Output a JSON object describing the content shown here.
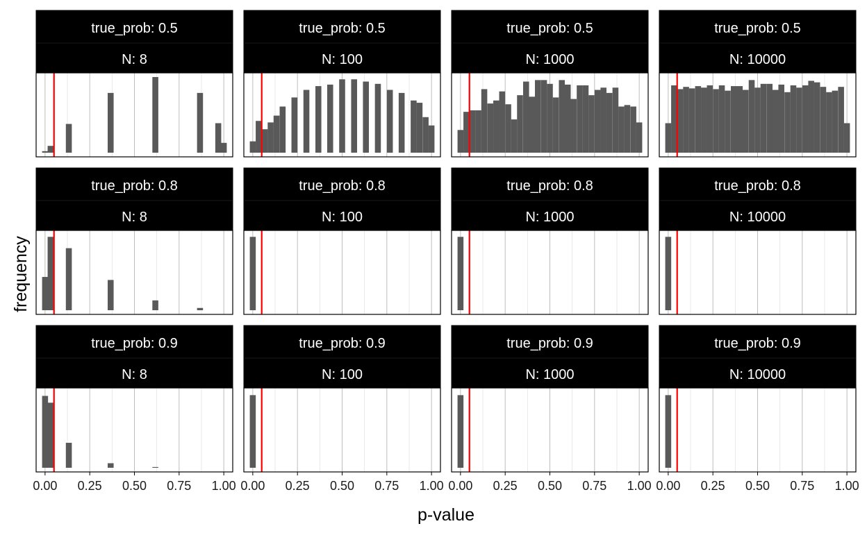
{
  "chart_data": {
    "type": "histogram-facet-grid",
    "xlabel": "p-value",
    "ylabel": "frequency",
    "x_ticks": [
      "0.00",
      "0.25",
      "0.50",
      "0.75",
      "1.00"
    ],
    "xlim": [
      -0.05,
      1.05
    ],
    "reference_line": {
      "x": 0.05,
      "color": "#ff0000"
    },
    "bar_color": "#595959",
    "strip_color": "#000000",
    "strip_text_color": "#ffffff",
    "bin_width": 0.0333,
    "facet_labels": {
      "true_prob": [
        "true_prob: 0.5",
        "true_prob: 0.8",
        "true_prob: 0.9"
      ],
      "N": [
        "N: 8",
        "N: 100",
        "N: 1000",
        "N: 10000"
      ]
    },
    "panels": [
      [
        {
          "bins": [
            {
              "x": 0.0,
              "y": 0.02
            },
            {
              "x": 0.031,
              "y": 0.09
            },
            {
              "x": 0.133,
              "y": 0.38
            },
            {
              "x": 0.367,
              "y": 0.79
            },
            {
              "x": 0.617,
              "y": 1.0
            },
            {
              "x": 0.867,
              "y": 0.79
            },
            {
              "x": 0.969,
              "y": 0.39
            },
            {
              "x": 1.0,
              "y": 0.13
            }
          ]
        },
        {
          "bins": [
            {
              "x": 0.0,
              "y": 0.15
            },
            {
              "x": 0.033,
              "y": 0.42
            },
            {
              "x": 0.067,
              "y": 0.31
            },
            {
              "x": 0.1,
              "y": 0.4
            },
            {
              "x": 0.133,
              "y": 0.49
            },
            {
              "x": 0.167,
              "y": 0.61
            },
            {
              "x": 0.233,
              "y": 0.73
            },
            {
              "x": 0.3,
              "y": 0.83
            },
            {
              "x": 0.367,
              "y": 0.88
            },
            {
              "x": 0.433,
              "y": 0.9
            },
            {
              "x": 0.5,
              "y": 0.97
            },
            {
              "x": 0.567,
              "y": 0.97
            },
            {
              "x": 0.633,
              "y": 0.94
            },
            {
              "x": 0.7,
              "y": 0.91
            },
            {
              "x": 0.767,
              "y": 0.83
            },
            {
              "x": 0.833,
              "y": 0.79
            },
            {
              "x": 0.9,
              "y": 0.69
            },
            {
              "x": 0.933,
              "y": 0.66
            },
            {
              "x": 0.967,
              "y": 0.47
            },
            {
              "x": 1.0,
              "y": 0.36
            }
          ]
        },
        {
          "bins": [
            {
              "x": 0.0,
              "y": 0.3
            },
            {
              "x": 0.033,
              "y": 0.54
            },
            {
              "x": 0.067,
              "y": 0.56
            },
            {
              "x": 0.1,
              "y": 0.56
            },
            {
              "x": 0.133,
              "y": 0.84
            },
            {
              "x": 0.167,
              "y": 0.65
            },
            {
              "x": 0.2,
              "y": 0.69
            },
            {
              "x": 0.233,
              "y": 0.81
            },
            {
              "x": 0.267,
              "y": 0.64
            },
            {
              "x": 0.3,
              "y": 0.44
            },
            {
              "x": 0.333,
              "y": 0.76
            },
            {
              "x": 0.367,
              "y": 0.94
            },
            {
              "x": 0.4,
              "y": 0.74
            },
            {
              "x": 0.433,
              "y": 0.96
            },
            {
              "x": 0.467,
              "y": 0.96
            },
            {
              "x": 0.5,
              "y": 0.91
            },
            {
              "x": 0.533,
              "y": 0.73
            },
            {
              "x": 0.567,
              "y": 0.96
            },
            {
              "x": 0.6,
              "y": 0.9
            },
            {
              "x": 0.633,
              "y": 0.71
            },
            {
              "x": 0.667,
              "y": 0.89
            },
            {
              "x": 0.7,
              "y": 0.89
            },
            {
              "x": 0.733,
              "y": 0.76
            },
            {
              "x": 0.767,
              "y": 0.83
            },
            {
              "x": 0.8,
              "y": 0.86
            },
            {
              "x": 0.833,
              "y": 0.79
            },
            {
              "x": 0.867,
              "y": 0.86
            },
            {
              "x": 0.9,
              "y": 0.61
            },
            {
              "x": 0.933,
              "y": 0.63
            },
            {
              "x": 0.967,
              "y": 0.61
            },
            {
              "x": 1.0,
              "y": 0.4
            }
          ]
        },
        {
          "bins": [
            {
              "x": 0.0,
              "y": 0.39
            },
            {
              "x": 0.033,
              "y": 0.89
            },
            {
              "x": 0.067,
              "y": 0.84
            },
            {
              "x": 0.1,
              "y": 0.87
            },
            {
              "x": 0.133,
              "y": 0.85
            },
            {
              "x": 0.167,
              "y": 0.88
            },
            {
              "x": 0.2,
              "y": 0.86
            },
            {
              "x": 0.233,
              "y": 0.89
            },
            {
              "x": 0.267,
              "y": 0.84
            },
            {
              "x": 0.3,
              "y": 0.89
            },
            {
              "x": 0.333,
              "y": 0.82
            },
            {
              "x": 0.367,
              "y": 0.88
            },
            {
              "x": 0.4,
              "y": 0.88
            },
            {
              "x": 0.433,
              "y": 0.83
            },
            {
              "x": 0.467,
              "y": 0.96
            },
            {
              "x": 0.5,
              "y": 0.86
            },
            {
              "x": 0.533,
              "y": 0.91
            },
            {
              "x": 0.567,
              "y": 0.91
            },
            {
              "x": 0.6,
              "y": 0.83
            },
            {
              "x": 0.633,
              "y": 0.9
            },
            {
              "x": 0.667,
              "y": 0.8
            },
            {
              "x": 0.7,
              "y": 0.89
            },
            {
              "x": 0.733,
              "y": 0.86
            },
            {
              "x": 0.767,
              "y": 0.89
            },
            {
              "x": 0.8,
              "y": 0.95
            },
            {
              "x": 0.833,
              "y": 0.93
            },
            {
              "x": 0.867,
              "y": 0.87
            },
            {
              "x": 0.9,
              "y": 0.8
            },
            {
              "x": 0.933,
              "y": 0.82
            },
            {
              "x": 0.967,
              "y": 0.87
            },
            {
              "x": 1.0,
              "y": 0.39
            }
          ]
        }
      ],
      [
        {
          "bins": [
            {
              "x": 0.0,
              "y": 0.44
            },
            {
              "x": 0.031,
              "y": 0.97
            },
            {
              "x": 0.133,
              "y": 0.82
            },
            {
              "x": 0.367,
              "y": 0.4
            },
            {
              "x": 0.617,
              "y": 0.13
            },
            {
              "x": 0.867,
              "y": 0.03
            }
          ]
        },
        {
          "bins": [
            {
              "x": 0.0,
              "y": 0.97
            }
          ]
        },
        {
          "bins": [
            {
              "x": 0.0,
              "y": 0.97
            }
          ]
        },
        {
          "bins": [
            {
              "x": 0.0,
              "y": 0.97
            }
          ]
        }
      ],
      [
        {
          "bins": [
            {
              "x": 0.0,
              "y": 0.95
            },
            {
              "x": 0.031,
              "y": 0.86
            },
            {
              "x": 0.133,
              "y": 0.33
            },
            {
              "x": 0.367,
              "y": 0.06
            },
            {
              "x": 0.617,
              "y": 0.01
            }
          ]
        },
        {
          "bins": [
            {
              "x": 0.0,
              "y": 0.96
            }
          ]
        },
        {
          "bins": [
            {
              "x": 0.0,
              "y": 0.96
            }
          ]
        },
        {
          "bins": [
            {
              "x": 0.0,
              "y": 0.96
            }
          ]
        }
      ]
    ]
  }
}
